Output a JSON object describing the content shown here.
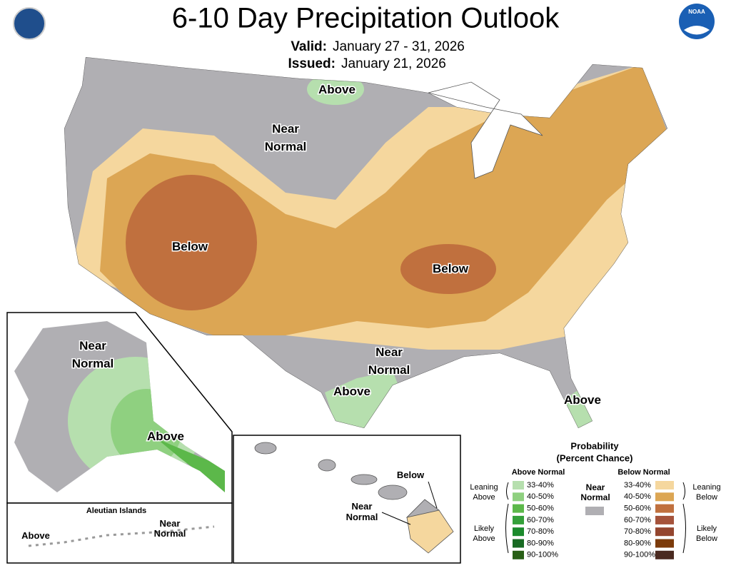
{
  "header": {
    "title": "6-10 Day Precipitation Outlook",
    "valid_label": "Valid:",
    "valid_dates": "January 27 - 31, 2026",
    "issued_label": "Issued:",
    "issued_date": "January 21, 2026",
    "noaa_logo": "NOAA"
  },
  "conus_labels": [
    {
      "lines": [
        "Above"
      ]
    },
    {
      "lines": [
        "Near",
        "Normal"
      ]
    },
    {
      "lines": [
        "Below"
      ]
    },
    {
      "lines": [
        "Below"
      ]
    },
    {
      "lines": [
        "Near",
        "Normal"
      ]
    },
    {
      "lines": [
        "Above"
      ]
    },
    {
      "lines": [
        "Above"
      ]
    }
  ],
  "alaska_labels": [
    {
      "lines": [
        "Near",
        "Normal"
      ]
    },
    {
      "lines": [
        "Above"
      ]
    }
  ],
  "aleutian": {
    "title": "Aleutian Islands",
    "labels": [
      {
        "lines": [
          "Above"
        ]
      },
      {
        "lines": [
          "Near",
          "Normal"
        ]
      }
    ]
  },
  "hawaii_labels": [
    {
      "lines": [
        "Below"
      ]
    },
    {
      "lines": [
        "Near",
        "Normal"
      ]
    }
  ],
  "legend": {
    "title": "Probability",
    "subtitle": "(Percent Chance)",
    "above_heading": "Above Normal",
    "below_heading": "Below Normal",
    "near": [
      "Near",
      "Normal"
    ],
    "leaning_above": [
      "Leaning",
      "Above"
    ],
    "likely_above": [
      "Likely",
      "Above"
    ],
    "leaning_below": [
      "Leaning",
      "Below"
    ],
    "likely_below": [
      "Likely",
      "Below"
    ],
    "above_ranges": [
      "33-40%",
      "40-50%",
      "50-60%",
      "60-70%",
      "70-80%",
      "80-90%",
      "90-100%"
    ],
    "below_ranges": [
      "33-40%",
      "40-50%",
      "50-60%",
      "60-70%",
      "70-80%",
      "80-90%",
      "90-100%"
    ]
  }
}
